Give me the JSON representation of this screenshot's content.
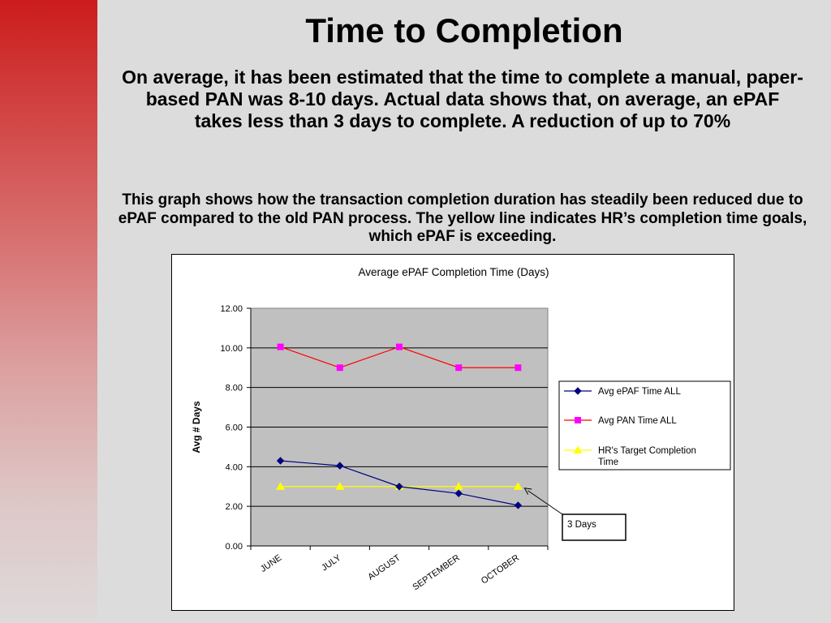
{
  "slide": {
    "title": "Time to Completion",
    "paragraph1": "On average, it has been estimated that the time to complete a manual, paper-based PAN was 8-10 days. Actual data shows that, on average, an ePAF takes less than 3 days to complete. A reduction of up to 70%",
    "paragraph2": "This graph shows how the transaction completion duration has steadily been reduced due to ePAF compared to the old PAN process. The yellow line indicates HR’s completion time goals, which ePAF is exceeding."
  },
  "colors": {
    "background": "#dcdcdc",
    "accent_stripe": "#cc1c1c",
    "plot_area": "#c0c0c0",
    "epaf_series": "#000080",
    "pan_series": "#ff00ff",
    "target_series": "#ffff00",
    "pan_line": "#ff0000"
  },
  "chart_data": {
    "type": "line",
    "title": "Average ePAF Completion Time (Days)",
    "xlabel": "",
    "ylabel": "Avg # Days",
    "categories": [
      "JUNE",
      "JULY",
      "AUGUST",
      "SEPTEMBER",
      "OCTOBER"
    ],
    "ylim": [
      0,
      12
    ],
    "yticks": [
      "0.00",
      "2.00",
      "4.00",
      "6.00",
      "8.00",
      "10.00",
      "12.00"
    ],
    "grid": true,
    "legend_position": "right",
    "series": [
      {
        "name": "Avg ePAF Time ALL",
        "values": [
          4.3,
          4.05,
          3.0,
          2.65,
          2.05
        ],
        "marker": "diamond"
      },
      {
        "name": "Avg PAN Time ALL",
        "values": [
          10.05,
          9.0,
          10.05,
          9.0,
          9.0
        ],
        "marker": "square"
      },
      {
        "name": "HR's Target Completion Time",
        "values": [
          3.0,
          3.0,
          3.0,
          3.0,
          3.0
        ],
        "marker": "triangle"
      }
    ],
    "annotation": {
      "text": "3 Days",
      "category": "OCTOBER",
      "value": 3.0
    }
  }
}
